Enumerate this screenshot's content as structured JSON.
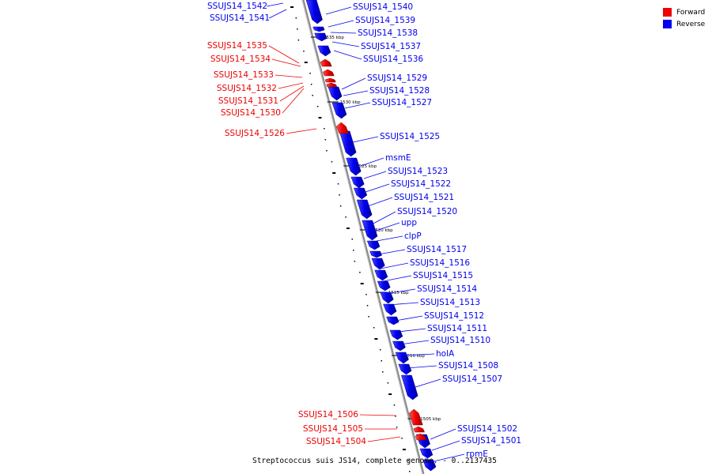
{
  "legend": {
    "forward": {
      "label": "Forward",
      "color": "#ee0000"
    },
    "reverse": {
      "label": "Reverse",
      "color": "#0000ee"
    }
  },
  "caption": "Streptococcus suis JS14, complete genome. - 0..2137435",
  "kbp_ticks": [
    "1535 kbp",
    "1530 kbp",
    "1525 kbp",
    "1520 kbp",
    "1515 kbp",
    "1510 kbp",
    "1505 kbp"
  ],
  "genes": {
    "forward": [
      "SSUJS14_1535",
      "SSUJS14_1534",
      "SSUJS14_1533",
      "SSUJS14_1532",
      "SSUJS14_1531",
      "SSUJS14_1530",
      "SSUJS14_1526",
      "SSUJS14_1506",
      "SSUJS14_1505",
      "SSUJS14_1504"
    ],
    "reverse": [
      "SSUJS14_1542",
      "SSUJS14_1541",
      "SSUJS14_1540",
      "SSUJS14_1539",
      "SSUJS14_1538",
      "SSUJS14_1537",
      "SSUJS14_1536",
      "SSUJS14_1529",
      "SSUJS14_1528",
      "SSUJS14_1527",
      "SSUJS14_1525",
      "msmE",
      "SSUJS14_1523",
      "SSUJS14_1522",
      "SSUJS14_1521",
      "SSUJS14_1520",
      "upp",
      "clpP",
      "SSUJS14_1517",
      "SSUJS14_1516",
      "SSUJS14_1515",
      "SSUJS14_1514",
      "SSUJS14_1513",
      "SSUJS14_1512",
      "SSUJS14_1511",
      "SSUJS14_1510",
      "holA",
      "SSUJS14_1508",
      "SSUJS14_1507",
      "SSUJS14_1502",
      "SSUJS14_1501",
      "rpmE"
    ]
  }
}
